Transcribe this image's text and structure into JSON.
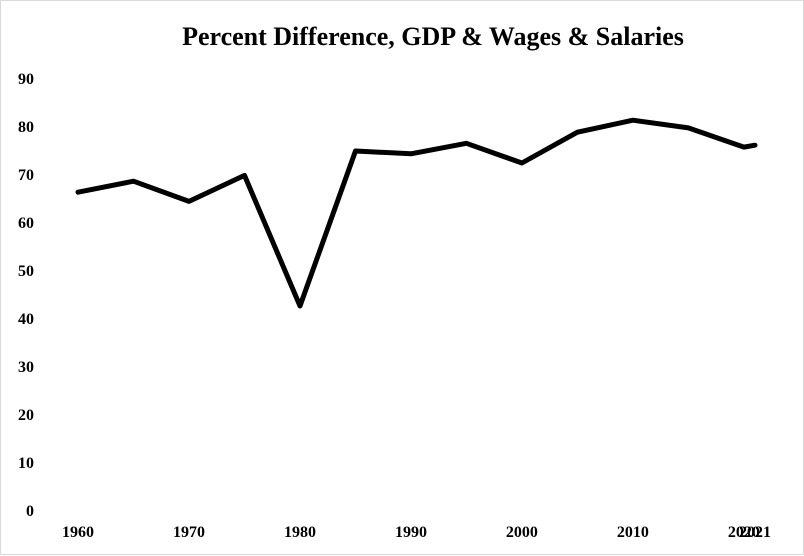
{
  "chart_data": {
    "type": "line",
    "title": "Percent Difference, GDP & Wages & Salaries",
    "xlabel": "",
    "ylabel": "",
    "ylim": [
      0,
      90
    ],
    "yticks": [
      "0",
      "10",
      "20",
      "30",
      "40",
      "50",
      "60",
      "70",
      "80",
      "90"
    ],
    "xticks": [
      "1960",
      "1970",
      "1980",
      "1990",
      "2000",
      "2010",
      "2020",
      "2021"
    ],
    "grid": false,
    "legend": "none",
    "series": [
      {
        "color": "#000000",
        "x": [
          1960,
          1965,
          1970,
          1975,
          1980,
          1985,
          1990,
          1995,
          2000,
          2005,
          2010,
          2015,
          2020,
          2021
        ],
        "values": [
          66.2,
          68.5,
          64.3,
          69.7,
          42.5,
          74.8,
          74.2,
          76.4,
          72.3,
          78.7,
          81.2,
          79.6,
          75.6,
          76.0
        ]
      }
    ]
  }
}
